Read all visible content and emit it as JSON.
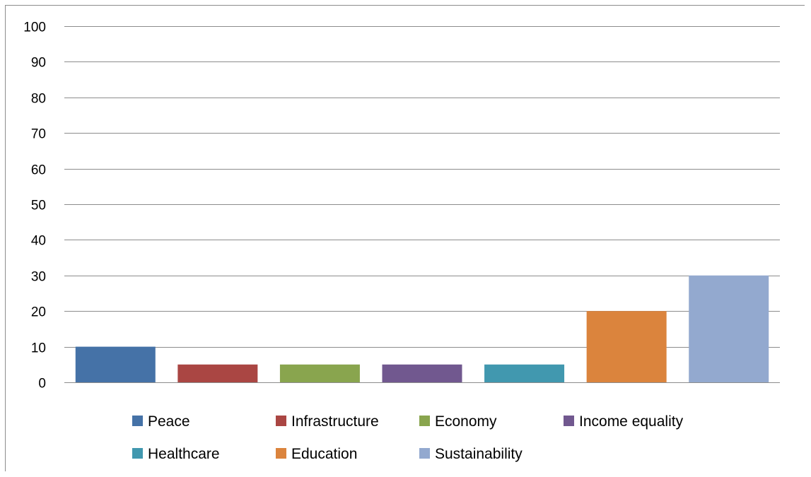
{
  "chart_data": {
    "type": "bar",
    "title": "",
    "xlabel": "",
    "ylabel": "",
    "ylim": [
      0,
      100
    ],
    "yticks": [
      0,
      10,
      20,
      30,
      40,
      50,
      60,
      70,
      80,
      90,
      100
    ],
    "grid": true,
    "legend_position": "bottom",
    "series": [
      {
        "name": "Peace",
        "value": 10,
        "color": "#4572A7"
      },
      {
        "name": "Infrastructure",
        "value": 5,
        "color": "#AA4643"
      },
      {
        "name": "Economy",
        "value": 5,
        "color": "#89A54E"
      },
      {
        "name": "Income equality",
        "value": 5,
        "color": "#71588F"
      },
      {
        "name": "Healthcare",
        "value": 5,
        "color": "#4198AF"
      },
      {
        "name": "Education",
        "value": 20,
        "color": "#DB843D"
      },
      {
        "name": "Sustainability",
        "value": 30,
        "color": "#93A9CF"
      }
    ]
  }
}
